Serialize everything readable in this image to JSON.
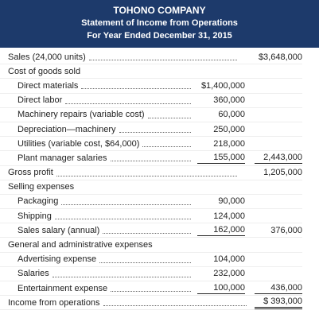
{
  "header": {
    "title": "TOHONO COMPANY",
    "subtitle": "Statement of Income from Operations",
    "period": "For Year Ended December 31, 2015"
  },
  "rows": [
    {
      "label": "Sales (24,000 units)",
      "col2": "$3,648,000"
    },
    {
      "label": "Cost of goods sold"
    },
    {
      "label": "Direct materials",
      "col1": "$1,400,000"
    },
    {
      "label": "Direct labor",
      "col1": "360,000"
    },
    {
      "label": "Machinery repairs (variable cost)",
      "col1": "60,000"
    },
    {
      "label": "Depreciation—machinery",
      "col1": "250,000"
    },
    {
      "label": "Utilities (variable cost, $64,000)",
      "col1": "218,000"
    },
    {
      "label": "Plant manager salaries",
      "col1": "155,000",
      "col2": "2,443,000"
    },
    {
      "label": "Gross profit",
      "col2": "1,205,000"
    },
    {
      "label": "Selling expenses"
    },
    {
      "label": "Packaging",
      "col1": "90,000"
    },
    {
      "label": "Shipping",
      "col1": "124,000"
    },
    {
      "label": "Sales salary (annual)",
      "col1": "162,000",
      "col2": "376,000"
    },
    {
      "label": "General and administrative expenses"
    },
    {
      "label": "Advertising expense",
      "col1": "104,000"
    },
    {
      "label": "Salaries",
      "col1": "232,000"
    },
    {
      "label": "Entertainment expense",
      "col1": "100,000",
      "col2": "436,000"
    },
    {
      "label": "Income from operations",
      "col2": "$ 393,000"
    }
  ]
}
